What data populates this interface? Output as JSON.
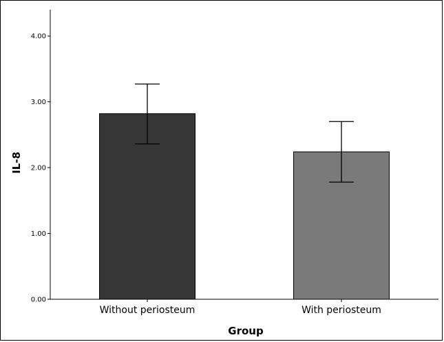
{
  "chart_data": {
    "type": "bar",
    "categories": [
      "Without periosteum",
      "With periosteum"
    ],
    "values": [
      2.82,
      2.24
    ],
    "error_bars": [
      {
        "low": 2.36,
        "high": 3.27
      },
      {
        "low": 1.78,
        "high": 2.7
      }
    ],
    "colors": [
      "#363636",
      "#7a7a7a"
    ],
    "xlabel": "Group",
    "ylabel": "IL-8",
    "ylim": [
      0,
      4.4
    ],
    "yticks": [
      0,
      1,
      2,
      3,
      4
    ],
    "ytick_labels": [
      "0.00",
      "1.00",
      "2.00",
      "3.00",
      "4.00"
    ],
    "grid": false,
    "legend": "none"
  }
}
